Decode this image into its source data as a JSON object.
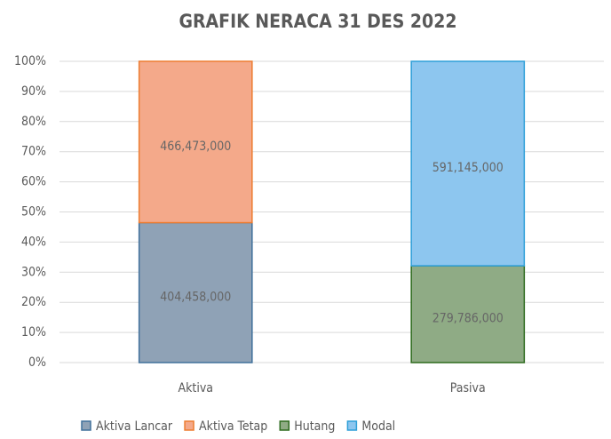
{
  "chart_data": {
    "type": "stacked_bar_percent",
    "title": "GRAFIK NERACA 31 DES 2022",
    "categories": [
      "Aktiva",
      "Pasiva"
    ],
    "series": [
      {
        "name": "Aktiva Lancar",
        "color": "#8fa2b6",
        "edgecolor": "#41719c",
        "values": [
          404458000,
          null
        ],
        "value_labels": [
          "404,458,000",
          null
        ]
      },
      {
        "name": "Aktiva Tetap",
        "color": "#f4a98a",
        "edgecolor": "#ed7d31",
        "values": [
          466473000,
          null
        ],
        "value_labels": [
          "466,473,000",
          null
        ]
      },
      {
        "name": "Hutang",
        "color": "#8fab85",
        "edgecolor": "#2e6b1f",
        "values": [
          null,
          279786000
        ],
        "value_labels": [
          null,
          "279,786,000"
        ]
      },
      {
        "name": "Modal",
        "color": "#8dc6ef",
        "edgecolor": "#2e9fd8",
        "values": [
          null,
          591145000
        ],
        "value_labels": [
          null,
          "591,145,000"
        ]
      }
    ],
    "ylim": [
      0,
      100
    ],
    "yticks": [
      {
        "value": 0,
        "label": "0%"
      },
      {
        "value": 10,
        "label": "10%"
      },
      {
        "value": 20,
        "label": "20%"
      },
      {
        "value": 30,
        "label": "30%"
      },
      {
        "value": 40,
        "label": "40%"
      },
      {
        "value": 50,
        "label": "50%"
      },
      {
        "value": 60,
        "label": "60%"
      },
      {
        "value": 70,
        "label": "70%"
      },
      {
        "value": 80,
        "label": "80%"
      },
      {
        "value": 90,
        "label": "90%"
      },
      {
        "value": 100,
        "label": "100%"
      }
    ],
    "grid": true,
    "legend": "bottom"
  }
}
